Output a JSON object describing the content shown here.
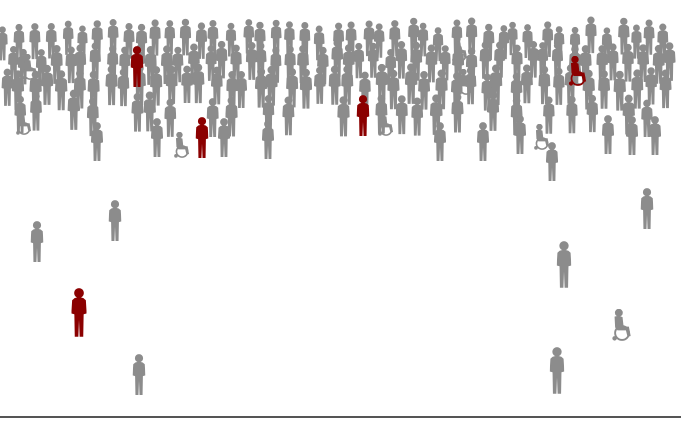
{
  "colors": {
    "background": "#ffffff",
    "crowd": "#8c8c8c",
    "highlight": "#8b0000",
    "rule": "#555555"
  },
  "icons": {
    "standing": "person-silhouette-icon",
    "wheelchair": "wheelchair-user-icon",
    "highlighted": "highlighted-person-icon"
  }
}
